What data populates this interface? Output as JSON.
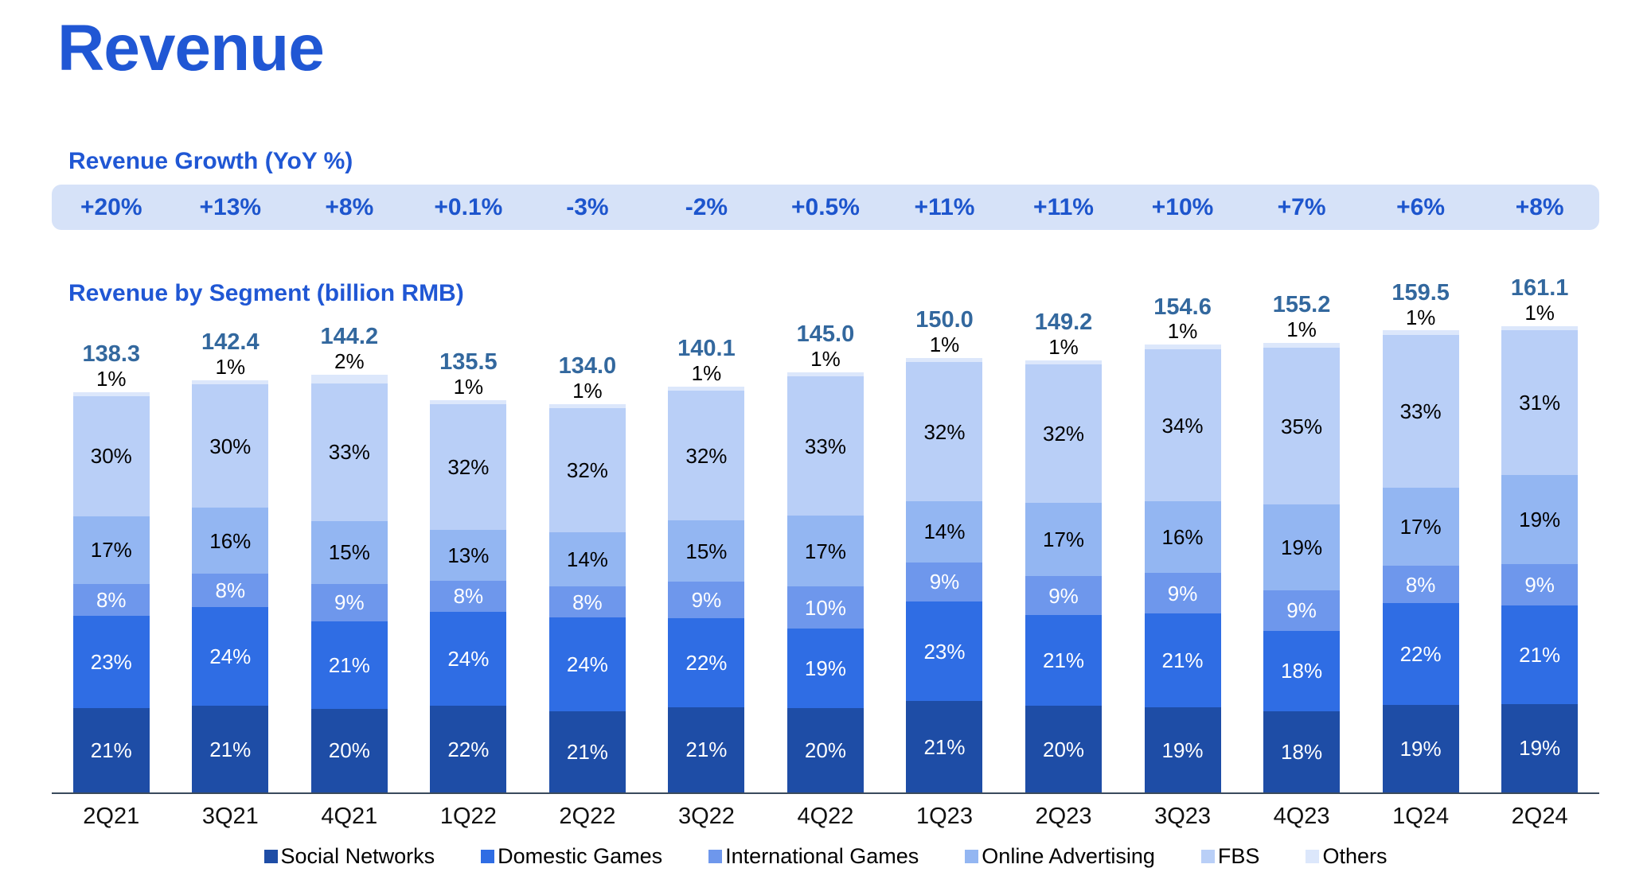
{
  "page": {
    "title": "Revenue"
  },
  "colors": {
    "accent": "#2057d4",
    "growth_text": "#1d55cd",
    "banner_bg": "#d6e2f8",
    "total_label": "#33689e",
    "axis": "#3a4a5c",
    "label_light": "#ffffff",
    "label_dark": "#000000"
  },
  "growth": {
    "heading": "Revenue Growth (YoY %)",
    "values": [
      "+20%",
      "+13%",
      "+8%",
      "+0.1%",
      "-3%",
      "-2%",
      "+0.5%",
      "+11%",
      "+11%",
      "+10%",
      "+7%",
      "+6%",
      "+8%"
    ]
  },
  "chart_data": {
    "type": "bar",
    "stacked": true,
    "title": "Revenue by Segment (billion RMB)",
    "unit": "billion RMB",
    "segment_unit": "%",
    "legend_position": "bottom",
    "grid": false,
    "categories": [
      "2Q21",
      "3Q21",
      "4Q21",
      "1Q22",
      "2Q22",
      "3Q22",
      "4Q22",
      "1Q23",
      "2Q23",
      "3Q23",
      "4Q23",
      "1Q24",
      "2Q24"
    ],
    "totals": [
      "138.3",
      "142.4",
      "144.2",
      "135.5",
      "134.0",
      "140.1",
      "145.0",
      "150.0",
      "149.2",
      "154.6",
      "155.2",
      "159.5",
      "161.1"
    ],
    "series": [
      {
        "name": "Social Networks",
        "color": "#1e4da6",
        "label_color": "#ffffff",
        "values": [
          21,
          21,
          20,
          22,
          21,
          21,
          20,
          21,
          20,
          19,
          18,
          19,
          19
        ]
      },
      {
        "name": "Domestic Games",
        "color": "#2f6de4",
        "label_color": "#ffffff",
        "values": [
          23,
          24,
          21,
          24,
          24,
          22,
          19,
          23,
          21,
          21,
          18,
          22,
          21
        ]
      },
      {
        "name": "International Games",
        "color": "#6e97ec",
        "label_color": "#ffffff",
        "values": [
          8,
          8,
          9,
          8,
          8,
          9,
          10,
          9,
          9,
          9,
          9,
          8,
          9
        ]
      },
      {
        "name": "Online Advertising",
        "color": "#93b6f2",
        "label_color": "#000000",
        "values": [
          17,
          16,
          15,
          13,
          14,
          15,
          17,
          14,
          17,
          16,
          19,
          17,
          19
        ]
      },
      {
        "name": "FBS",
        "color": "#b9cff7",
        "label_color": "#000000",
        "values": [
          30,
          30,
          33,
          32,
          32,
          32,
          33,
          32,
          32,
          34,
          35,
          33,
          31
        ]
      },
      {
        "name": "Others",
        "color": "#dce7fb",
        "label_color": "#000000",
        "values": [
          1,
          1,
          2,
          1,
          1,
          1,
          1,
          1,
          1,
          1,
          1,
          1,
          1
        ]
      }
    ]
  }
}
